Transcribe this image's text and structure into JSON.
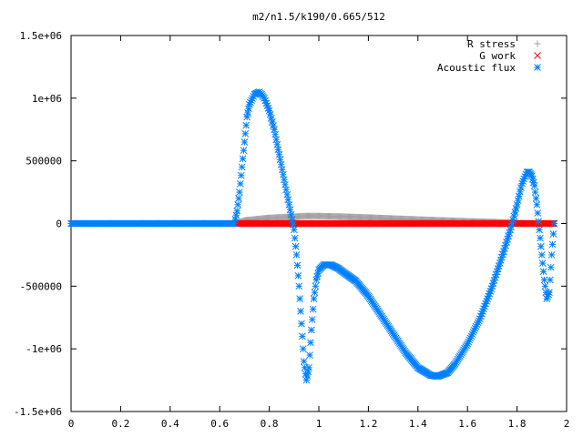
{
  "chart_data": {
    "type": "scatter",
    "title": "m2/n1.5/k190/0.665/512",
    "xlim": [
      0,
      2
    ],
    "ylim": [
      -1500000,
      1500000
    ],
    "xticks": [
      {
        "v": 0,
        "label": "0"
      },
      {
        "v": 0.2,
        "label": "0.2"
      },
      {
        "v": 0.4,
        "label": "0.4"
      },
      {
        "v": 0.6,
        "label": "0.6"
      },
      {
        "v": 0.8,
        "label": "0.8"
      },
      {
        "v": 1.0,
        "label": "1"
      },
      {
        "v": 1.2,
        "label": "1.2"
      },
      {
        "v": 1.4,
        "label": "1.4"
      },
      {
        "v": 1.6,
        "label": "1.6"
      },
      {
        "v": 1.8,
        "label": "1.8"
      },
      {
        "v": 2.0,
        "label": "2"
      }
    ],
    "yticks": [
      {
        "v": 1500000,
        "label": "1.5e+06"
      },
      {
        "v": 1000000,
        "label": "1e+06"
      },
      {
        "v": 500000,
        "label": "500000"
      },
      {
        "v": 0,
        "label": "0"
      },
      {
        "v": -500000,
        "label": "-500000"
      },
      {
        "v": -1000000,
        "label": "-1e+06"
      },
      {
        "v": -1500000,
        "label": "-1.5e+06"
      }
    ],
    "grid": false,
    "legend_position": "top-right",
    "series": [
      {
        "name": "R stress",
        "marker": "plus",
        "color": "#a0a0a0",
        "x": [
          0.0,
          0.66,
          0.7,
          0.8,
          0.9,
          0.95,
          1.0,
          1.1,
          1.2,
          1.3,
          1.4,
          1.5,
          1.6,
          1.7,
          1.8,
          1.85,
          1.9,
          1.95
        ],
        "y": [
          0,
          0,
          25000,
          45000,
          55000,
          60000,
          60000,
          55000,
          48000,
          40000,
          32000,
          25000,
          18000,
          12000,
          5000,
          0,
          0,
          0
        ]
      },
      {
        "name": "G work",
        "marker": "cross",
        "color": "#ff0000",
        "x": [
          0.66,
          0.8,
          1.0,
          1.2,
          1.4,
          1.6,
          1.8,
          1.95
        ],
        "y": [
          0,
          0,
          0,
          0,
          0,
          0,
          0,
          0
        ]
      },
      {
        "name": "Acoustic flux",
        "marker": "star",
        "color": "#0080ff",
        "x": [
          0.0,
          0.3,
          0.66,
          0.67,
          0.68,
          0.69,
          0.7,
          0.71,
          0.72,
          0.74,
          0.76,
          0.78,
          0.8,
          0.82,
          0.84,
          0.86,
          0.88,
          0.9,
          0.91,
          0.92,
          0.93,
          0.94,
          0.95,
          0.96,
          0.97,
          0.98,
          0.99,
          1.0,
          1.02,
          1.05,
          1.08,
          1.1,
          1.15,
          1.2,
          1.25,
          1.3,
          1.35,
          1.4,
          1.45,
          1.48,
          1.52,
          1.55,
          1.6,
          1.65,
          1.7,
          1.75,
          1.78,
          1.8,
          1.82,
          1.84,
          1.85,
          1.86,
          1.87,
          1.88,
          1.89,
          1.9,
          1.91,
          1.92,
          1.93,
          1.94,
          1.95
        ],
        "y": [
          0,
          0,
          0,
          100000,
          250000,
          450000,
          650000,
          850000,
          950000,
          1030000,
          1050000,
          1000000,
          900000,
          750000,
          550000,
          350000,
          150000,
          -50000,
          -250000,
          -500000,
          -800000,
          -1100000,
          -1250000,
          -1150000,
          -850000,
          -600000,
          -450000,
          -370000,
          -330000,
          -330000,
          -360000,
          -390000,
          -460000,
          -580000,
          -730000,
          -880000,
          -1030000,
          -1150000,
          -1210000,
          -1220000,
          -1190000,
          -1120000,
          -960000,
          -760000,
          -500000,
          -200000,
          0,
          150000,
          320000,
          410000,
          410000,
          380000,
          300000,
          150000,
          -50000,
          -250000,
          -450000,
          -600000,
          -550000,
          -250000,
          0
        ]
      }
    ]
  }
}
